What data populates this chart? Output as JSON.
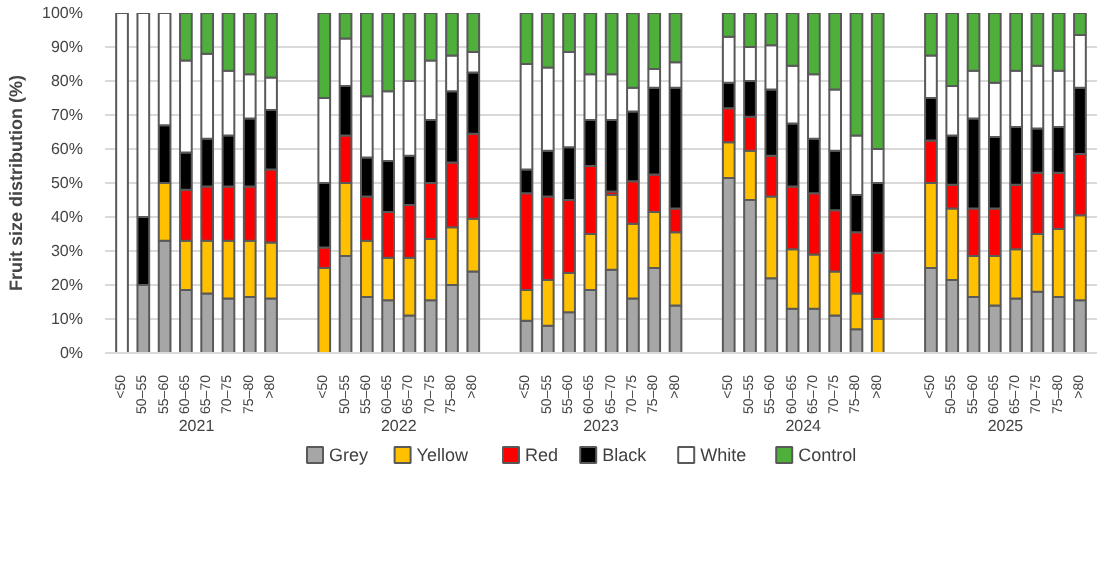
{
  "chart_data": {
    "type": "bar",
    "stacked": true,
    "ylabel": "Fruit size distribution (%)",
    "categories": [
      "<50",
      "50–55",
      "55–60",
      "60–65",
      "65–70",
      "70–75",
      "75–80",
      ">80",
      "<50",
      "50–55",
      "55–60",
      "60–65",
      "65–70",
      "70–75",
      "75–80",
      ">80",
      "<50",
      "50–55",
      "55–60",
      "60–65",
      "65–70",
      "70–75",
      "75–80",
      ">80",
      "<50",
      "50–55",
      "55–60",
      "60–65",
      "65–70",
      "70–75",
      "75–80",
      ">80",
      "<50",
      "50–55",
      "55–60",
      "60–65",
      "65–70",
      "70–75",
      "75–80",
      ">80"
    ],
    "annotations": [
      "2021",
      "2022",
      "2023",
      "2024",
      "2025"
    ],
    "ylim": [
      0,
      100
    ],
    "yticks": [
      {
        "value": 0,
        "label": "0%"
      },
      {
        "value": 10,
        "label": "10%"
      },
      {
        "value": 20,
        "label": "20%"
      },
      {
        "value": 30,
        "label": "30%"
      },
      {
        "value": 40,
        "label": "40%"
      },
      {
        "value": 50,
        "label": "50%"
      },
      {
        "value": 60,
        "label": "60%"
      },
      {
        "value": 70,
        "label": "70%"
      },
      {
        "value": 80,
        "label": "80%"
      },
      {
        "value": 90,
        "label": "90%"
      },
      {
        "value": 100,
        "label": "100%"
      }
    ],
    "grid": "y",
    "legend": "bottom",
    "series": [
      {
        "name": "Grey",
        "color": "#a6a6a6",
        "values": [
          0,
          20,
          33,
          18.5,
          17.5,
          16,
          16.5,
          16,
          0,
          28.5,
          16.5,
          15.5,
          11,
          15.5,
          20,
          24,
          9.5,
          8,
          12,
          18.5,
          24.5,
          16,
          25,
          14,
          51.5,
          45,
          22,
          13,
          13,
          11,
          7,
          0,
          25,
          21.5,
          16.5,
          14,
          16,
          18,
          16.5,
          15.5
        ]
      },
      {
        "name": "Yellow",
        "color": "#ffc000",
        "values": [
          0,
          0,
          17,
          14.5,
          15.5,
          17,
          16.5,
          16.5,
          25,
          21.5,
          16.5,
          12.5,
          17,
          18,
          17,
          15.5,
          9,
          13.5,
          11.5,
          16.5,
          22,
          22,
          16.5,
          21.5,
          10.5,
          14.5,
          24,
          17.5,
          16,
          13,
          10.5,
          10,
          25,
          21,
          12,
          14.5,
          14.5,
          17,
          20,
          25
        ]
      },
      {
        "name": "Red",
        "color": "#ff0000",
        "values": [
          0,
          0,
          0,
          15,
          16,
          16,
          16,
          21.5,
          6,
          14,
          13,
          13.5,
          15.5,
          16.5,
          19,
          25,
          28.5,
          24.5,
          21.5,
          20,
          1,
          12.5,
          11,
          7,
          10,
          10,
          12,
          18.5,
          18,
          18,
          18,
          19.5,
          12.5,
          7,
          14,
          14,
          19,
          18,
          16.5,
          18
        ]
      },
      {
        "name": "Black",
        "color": "#000000",
        "values": [
          0,
          20,
          17,
          11,
          14,
          15,
          20,
          17.5,
          19,
          14.5,
          11.5,
          15,
          14.5,
          18.5,
          21,
          18,
          7,
          13.5,
          15.5,
          13.5,
          21,
          20.5,
          25.5,
          35.5,
          7.5,
          10.5,
          19.5,
          18.5,
          16,
          17.5,
          11,
          20.5,
          12.5,
          14.5,
          26.5,
          21,
          17,
          13,
          13.5,
          19.5
        ]
      },
      {
        "name": "White",
        "color": "#ffffff",
        "values": [
          100,
          60,
          33,
          27,
          25,
          19,
          13,
          9.5,
          25,
          14,
          18,
          20.5,
          22,
          17.5,
          10.5,
          6,
          31,
          24.5,
          28,
          13.5,
          13.5,
          7,
          5.5,
          7.5,
          13.5,
          10,
          13,
          17,
          19,
          18,
          17.5,
          10,
          12.5,
          14.5,
          14,
          16,
          16.5,
          18.5,
          16.5,
          15.5
        ]
      },
      {
        "name": "Control",
        "color": "#4eb03b",
        "values": [
          0,
          0,
          0,
          14,
          12,
          17,
          18,
          19,
          25,
          7.5,
          24.5,
          23,
          20,
          14,
          12.5,
          11.5,
          15,
          16,
          11.5,
          18,
          18,
          22,
          16.5,
          14.5,
          7,
          10,
          9.5,
          15.5,
          18,
          22.5,
          36,
          40,
          12.5,
          21.5,
          17,
          20.5,
          17,
          15.5,
          17,
          6.5
        ]
      }
    ]
  }
}
